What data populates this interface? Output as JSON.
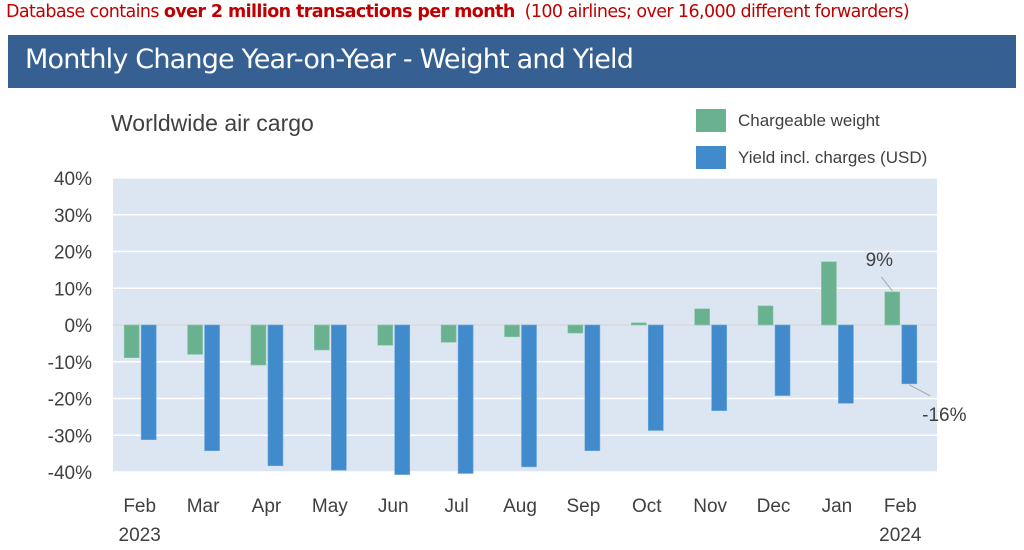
{
  "header": {
    "note_prefix": "Database contains ",
    "note_bold": "over 2 million transactions per month",
    "note_suffix": "  (100 airlines; over 16,000 different forwarders)",
    "title": "Monthly Change Year-on-Year - Weight and Yield"
  },
  "colors": {
    "note": "#c00000",
    "title_bar": "#376092",
    "plot_bg": "#dce6f2",
    "weight": "#6ab190",
    "yield": "#418acb"
  },
  "chart_data": {
    "type": "bar",
    "title": "Worldwide air cargo",
    "categories": [
      "Feb",
      "Mar",
      "Apr",
      "May",
      "Jun",
      "Jul",
      "Aug",
      "Sep",
      "Oct",
      "Nov",
      "Dec",
      "Jan",
      "Feb"
    ],
    "category_sublabels": [
      "2023",
      "",
      "",
      "",
      "",
      "",
      "",
      "",
      "",
      "",
      "",
      "",
      "2024"
    ],
    "series": [
      {
        "name": "Chargeable weight",
        "values": [
          -8.9,
          -8.0,
          -10.9,
          -6.8,
          -5.5,
          -4.7,
          -3.2,
          -2.2,
          0.6,
          4.4,
          5.2,
          17.2,
          9
        ]
      },
      {
        "name": "Yield incl. charges (USD)",
        "values": [
          -31.2,
          -34.2,
          -38.3,
          -39.5,
          -40.7,
          -40.4,
          -38.6,
          -34.2,
          -28.7,
          -23.3,
          -19.2,
          -21.3,
          -16
        ]
      }
    ],
    "ylim": [
      -40,
      40
    ],
    "yticks": [
      "40%",
      "30%",
      "20%",
      "10%",
      "0%",
      "-10%",
      "-20%",
      "-30%",
      "-40%"
    ],
    "ytick_values": [
      40,
      30,
      20,
      10,
      0,
      -10,
      -20,
      -30,
      -40
    ],
    "grid": true,
    "legend": "top-right",
    "annotations": [
      {
        "series": 0,
        "index": 12,
        "text": "9%"
      },
      {
        "series": 1,
        "index": 12,
        "text": "-16%"
      }
    ]
  }
}
